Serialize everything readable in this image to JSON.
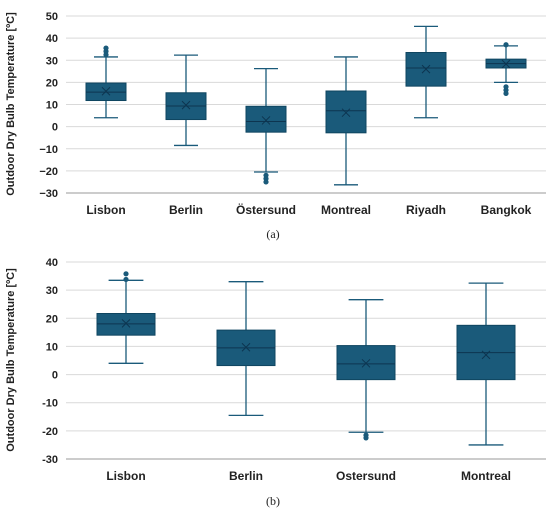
{
  "chart_data": [
    {
      "type": "box",
      "panel": "(a)",
      "ylabel": "Outdoor Dry Bulb Temperature [ºC]",
      "ylim": [
        -30,
        50
      ],
      "yticks": [
        "50",
        "40",
        "30",
        "20",
        "10",
        "0",
        "−10",
        "−20",
        "−30"
      ],
      "ytick_values": [
        50,
        40,
        30,
        20,
        10,
        0,
        -10,
        -20,
        -30
      ],
      "grid": true,
      "categories": [
        "Lisbon",
        "Berlin",
        "Östersund",
        "Montreal",
        "Riyadh",
        "Bangkok"
      ],
      "boxes": [
        {
          "min": 4,
          "q1": 11.8,
          "median": 15.6,
          "q3": 19.7,
          "max": 31.5,
          "mean": 16,
          "outliers": [
            32.5,
            34,
            35.5
          ]
        },
        {
          "min": -8.5,
          "q1": 3.2,
          "median": 9.3,
          "q3": 15.3,
          "max": 32.3,
          "mean": 9.7,
          "outliers": []
        },
        {
          "min": -20.5,
          "q1": -2.5,
          "median": 2.3,
          "q3": 9.2,
          "max": 26.2,
          "mean": 2.8,
          "outliers": [
            -22,
            -23.5,
            -25
          ]
        },
        {
          "min": -26.3,
          "q1": -2.8,
          "median": 7.2,
          "q3": 16.1,
          "max": 31.5,
          "mean": 6.3,
          "outliers": []
        },
        {
          "min": 4,
          "q1": 18.3,
          "median": 26.5,
          "q3": 33.5,
          "max": 45.3,
          "mean": 26,
          "outliers": []
        },
        {
          "min": 20,
          "q1": 26.5,
          "median": 28.5,
          "q3": 30.5,
          "max": 36.5,
          "mean": 28.3,
          "outliers": [
            37,
            18,
            16.5,
            15
          ]
        }
      ]
    },
    {
      "type": "box",
      "panel": "(b)",
      "ylabel": "Outdoor Dry Bulb Temperature [ºC]",
      "ylim": [
        -30,
        40
      ],
      "yticks": [
        "40",
        "30",
        "20",
        "10",
        "0",
        "-10",
        "-20",
        "-30"
      ],
      "ytick_values": [
        40,
        30,
        20,
        10,
        0,
        -10,
        -20,
        -30
      ],
      "grid": true,
      "categories": [
        "Lisbon",
        "Berlin",
        "Ostersund",
        "Montreal"
      ],
      "boxes": [
        {
          "min": 4,
          "q1": 14,
          "median": 18,
          "q3": 21.7,
          "max": 33.5,
          "mean": 18.2,
          "outliers": [
            33.8,
            35.8
          ]
        },
        {
          "min": -14.5,
          "q1": 3.2,
          "median": 9.5,
          "q3": 15.8,
          "max": 33,
          "mean": 9.7,
          "outliers": []
        },
        {
          "min": -20.5,
          "q1": -1.8,
          "median": 3.8,
          "q3": 10.3,
          "max": 26.6,
          "mean": 4,
          "outliers": [
            -21.5,
            -22.5
          ]
        },
        {
          "min": -25,
          "q1": -1.8,
          "median": 7.8,
          "q3": 17.5,
          "max": 32.5,
          "mean": 7,
          "outliers": []
        }
      ]
    }
  ]
}
